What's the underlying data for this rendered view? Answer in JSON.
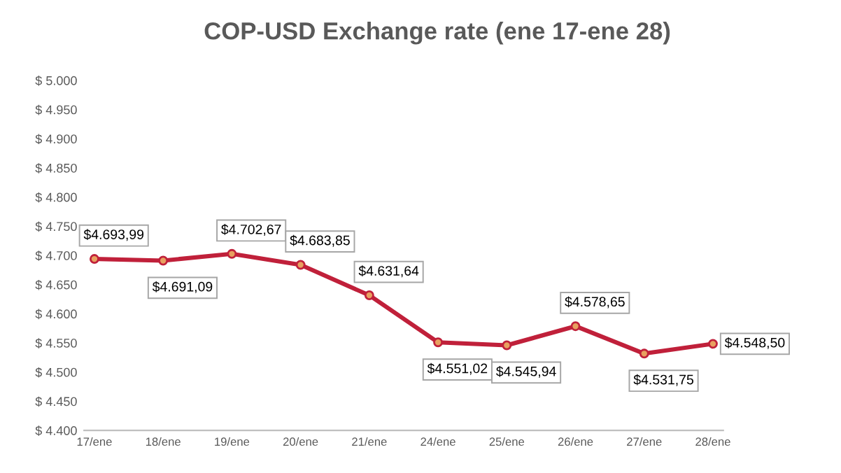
{
  "chart_data": {
    "type": "line",
    "title": "COP-USD Exchange rate (ene 17-ene 28)",
    "categories": [
      "17/ene",
      "18/ene",
      "19/ene",
      "20/ene",
      "21/ene",
      "24/ene",
      "25/ene",
      "26/ene",
      "27/ene",
      "28/ene"
    ],
    "series": [
      {
        "color": "#c0203a",
        "values": [
          4693.99,
          4691.09,
          4702.67,
          4683.85,
          4631.64,
          4551.02,
          4545.94,
          4578.65,
          4531.75,
          4548.5
        ],
        "value_labels": [
          "$4.693,99",
          "$4.691,09",
          "$4.702,67",
          "$4.683,85",
          "$4.631,64",
          "$4.551,02",
          "$4.545,94",
          "$4.578,65",
          "$4.531,75",
          "$4.548,50"
        ]
      }
    ],
    "ylim": [
      4400,
      5000
    ],
    "yticks": [
      {
        "value": 4400,
        "label": "$ 4.400"
      },
      {
        "value": 4450,
        "label": "$ 4.450"
      },
      {
        "value": 4500,
        "label": "$ 4.500"
      },
      {
        "value": 4550,
        "label": "$ 4.550"
      },
      {
        "value": 4600,
        "label": "$ 4.600"
      },
      {
        "value": 4650,
        "label": "$ 4.650"
      },
      {
        "value": 4700,
        "label": "$ 4.700"
      },
      {
        "value": 4750,
        "label": "$ 4.750"
      },
      {
        "value": 4800,
        "label": "$ 4.800"
      },
      {
        "value": 4850,
        "label": "$ 4.850"
      },
      {
        "value": 4900,
        "label": "$ 4.900"
      },
      {
        "value": 4950,
        "label": "$ 4.950"
      },
      {
        "value": 5000,
        "label": "$ 5.000"
      }
    ],
    "marker": "circle",
    "line_style": "solid",
    "grid": false,
    "legend": false
  }
}
